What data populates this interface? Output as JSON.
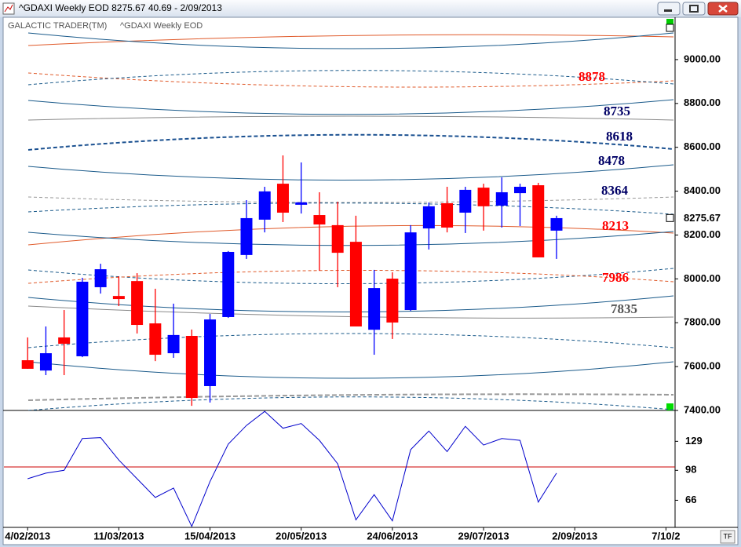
{
  "chart_data": [
    {
      "type": "candlestick",
      "title": "^GDAXI Weekly EOD  8275.67    40.69 - 2/09/2013",
      "subtitle": [
        "GALACTIC TRADER(TM)",
        "^GDAXI Weekly EOD"
      ],
      "open": [
        7629,
        7582,
        7733,
        7647,
        7962,
        7922,
        7990,
        7797,
        7661,
        7740,
        7511,
        7826,
        8109,
        8270,
        8434,
        8338,
        8291,
        8245,
        8169,
        7768,
        8001,
        7858,
        8230,
        8345,
        8302,
        8416,
        8334,
        8391,
        8427,
        8220
      ],
      "high": [
        7733,
        7783,
        7858,
        8005,
        8069,
        8012,
        8026,
        7955,
        7887,
        7769,
        7840,
        8127,
        8359,
        8420,
        8563,
        8531,
        8395,
        8352,
        8288,
        8041,
        8030,
        8245,
        8348,
        8420,
        8420,
        8434,
        8463,
        8434,
        8438,
        8288
      ],
      "low": [
        7590,
        7561,
        7561,
        7643,
        7933,
        7876,
        7751,
        7625,
        7640,
        7421,
        7436,
        7822,
        8091,
        8212,
        8259,
        8298,
        8037,
        7962,
        7783,
        7654,
        7726,
        7854,
        8134,
        8212,
        8209,
        8220,
        8234,
        8241,
        8098,
        8091
      ],
      "close": [
        7590,
        7661,
        7704,
        7987,
        8044,
        7908,
        7790,
        7654,
        7744,
        7457,
        7815,
        8123,
        8277,
        8399,
        8302,
        8349,
        8248,
        8119,
        7783,
        7958,
        7801,
        8212,
        8331,
        8234,
        8406,
        8331,
        8395,
        8420,
        8098,
        8277
      ],
      "up_color": "#0000ff",
      "down_color": "#ff0000",
      "last_price": 8275.67,
      "annotations": [
        {
          "value": 8878,
          "color": "#ff0000"
        },
        {
          "value": 8735,
          "color": "#000066"
        },
        {
          "value": 8618,
          "color": "#000066"
        },
        {
          "value": 8478,
          "color": "#000066"
        },
        {
          "value": 8364,
          "color": "#000066"
        },
        {
          "value": 8213,
          "color": "#ff0000"
        },
        {
          "value": 7986,
          "color": "#ff0000"
        },
        {
          "value": 7835,
          "color": "#555555"
        }
      ],
      "xlim": [
        -1.3,
        35.5
      ],
      "xticks": [
        {
          "value": 0,
          "label": "4/02/2013"
        },
        {
          "value": 5,
          "label": "11/03/2013"
        },
        {
          "value": 10,
          "label": "15/04/2013"
        },
        {
          "value": 15,
          "label": "20/05/2013"
        },
        {
          "value": 20,
          "label": "24/06/2013"
        },
        {
          "value": 25,
          "label": "29/07/2013"
        },
        {
          "value": 30,
          "label": "2/09/2013"
        },
        {
          "value": 35,
          "label": "7/10/2"
        }
      ],
      "ylim": [
        7400,
        9193
      ],
      "yticks": [
        {
          "value": 7400,
          "label": "7400.00"
        },
        {
          "value": 7600,
          "label": "7600.00"
        },
        {
          "value": 7800,
          "label": "7800.00"
        },
        {
          "value": 8000,
          "label": "8000.00"
        },
        {
          "value": 8200,
          "label": "8200.00"
        },
        {
          "value": 8400,
          "label": "8400.00"
        },
        {
          "value": 8600,
          "label": "8600.00"
        },
        {
          "value": 8800,
          "label": "8800.00"
        },
        {
          "value": 9000,
          "label": "9000.00"
        }
      ]
    },
    {
      "type": "line",
      "values": [
        89,
        95,
        98,
        132,
        133,
        109,
        89,
        69,
        79,
        38,
        86,
        126,
        146,
        161,
        143,
        148,
        130,
        105,
        45,
        72,
        44,
        120,
        140,
        118,
        145,
        125,
        132,
        130,
        64,
        95
      ],
      "color": "#0000cc",
      "ylim": [
        37,
        162
      ],
      "yticks": [
        66,
        98,
        129
      ]
    }
  ]
}
